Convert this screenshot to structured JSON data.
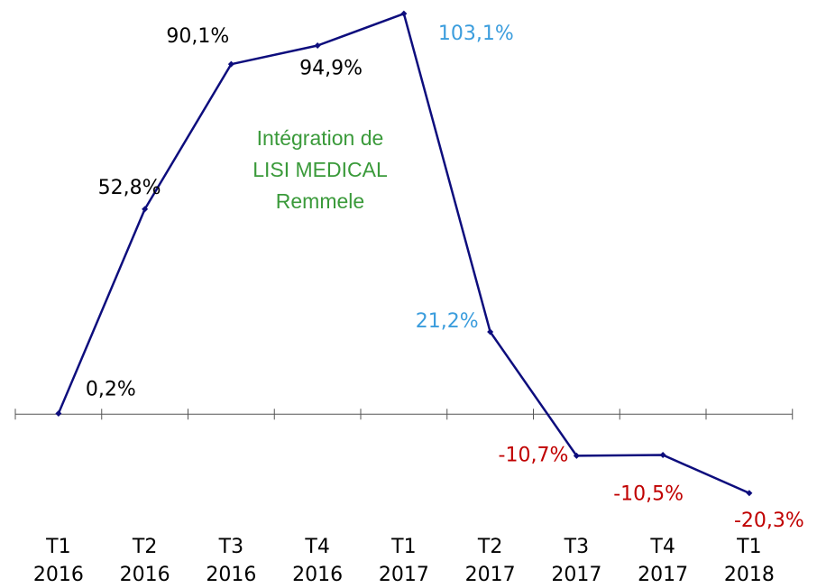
{
  "chart_data": {
    "type": "line",
    "categories": [
      "T1 2016",
      "T2 2016",
      "T3 2016",
      "T4 2016",
      "T1 2017",
      "T2 2017",
      "T3 2017",
      "T4 2017",
      "T1 2018"
    ],
    "series": [
      {
        "color": "#0d0d7d",
        "values": [
          0.2,
          52.8,
          90.1,
          94.9,
          103.1,
          21.2,
          -10.7,
          -10.5,
          -20.3
        ],
        "value_labels": [
          "0,2%",
          "52,8%",
          "90,1%",
          "94,9%",
          "103,1%",
          "21,2%",
          "-10,7%",
          "-10,5%",
          "-20,3%"
        ],
        "label_colors": [
          "#000000",
          "#000000",
          "#000000",
          "#000000",
          "#3b9ddd",
          "#3b9ddd",
          "#c00000",
          "#c00000",
          "#c00000"
        ]
      }
    ],
    "ylim": [
      -25,
      105
    ],
    "annotations": [
      {
        "lines": [
          "Intégration de",
          "LISI MEDICAL",
          "Remmele"
        ],
        "color": "#3a9a3a"
      }
    ]
  }
}
